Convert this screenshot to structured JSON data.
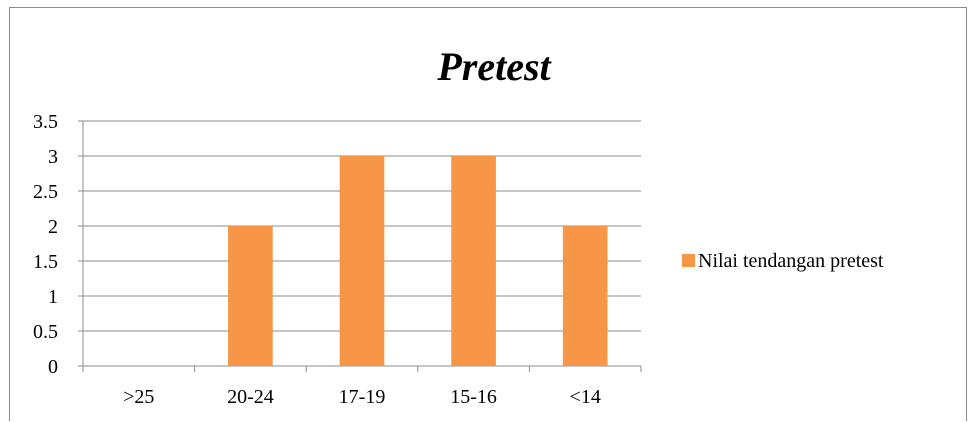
{
  "chart_data": {
    "type": "bar",
    "title": "Pretest",
    "xlabel": "",
    "ylabel": "",
    "categories": [
      ">25",
      "20-24",
      "17-19",
      "15-16",
      "<14"
    ],
    "series": [
      {
        "name": "Nilai tendangan pretest",
        "values": [
          0,
          2,
          3,
          3,
          2
        ],
        "color": "#f79646"
      }
    ],
    "ylim": [
      0,
      3.5
    ],
    "yticks": [
      "0",
      "0.5",
      "1",
      "1.5",
      "2",
      "2.5",
      "3",
      "3.5"
    ],
    "grid": true,
    "legend_position": "right"
  }
}
